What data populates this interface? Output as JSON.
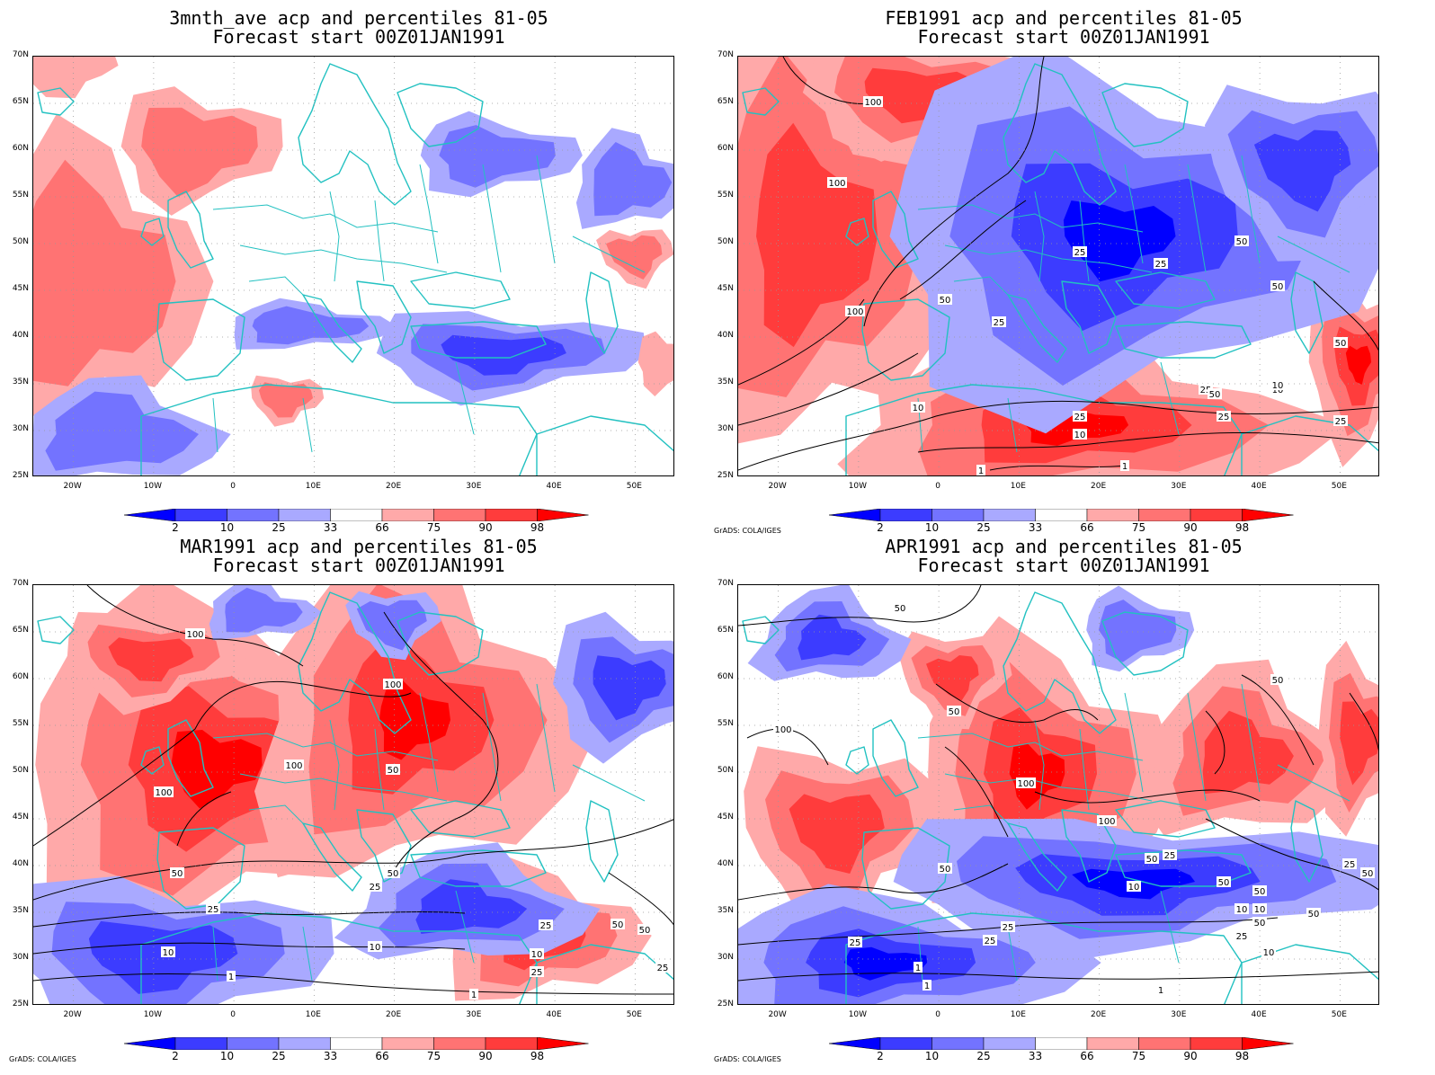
{
  "panels": [
    {
      "id": "p1",
      "title_line1": "3mnth_ave acp and percentiles 81-05",
      "title_line2": "Forecast start 00Z01JAN1991",
      "credit": ""
    },
    {
      "id": "p2",
      "title_line1": "FEB1991 acp and percentiles 81-05",
      "title_line2": "Forecast start 00Z01JAN1991",
      "credit": "GrADS: COLA/IGES"
    },
    {
      "id": "p3",
      "title_line1": "MAR1991 acp and percentiles 81-05",
      "title_line2": "Forecast start 00Z01JAN1991",
      "credit": "GrADS: COLA/IGES"
    },
    {
      "id": "p4",
      "title_line1": "APR1991 acp and percentiles 81-05",
      "title_line2": "Forecast start 00Z01JAN1991",
      "credit": "GrADS: COLA/IGES"
    }
  ],
  "lat_labels": [
    "70N",
    "65N",
    "60N",
    "55N",
    "50N",
    "45N",
    "40N",
    "35N",
    "30N",
    "25N"
  ],
  "lon_labels": [
    "20W",
    "10W",
    "0",
    "10E",
    "20E",
    "30E",
    "40E",
    "50E"
  ],
  "colorbar": {
    "labels": [
      "2",
      "10",
      "25",
      "33",
      "66",
      "75",
      "90",
      "98"
    ],
    "colors": [
      "#0000ff",
      "#3c3cff",
      "#7373ff",
      "#a9a9ff",
      "#ffffff",
      "#ffa9a9",
      "#ff7373",
      "#ff3c3c",
      "#ff0000"
    ]
  },
  "contour_labels": {
    "p2": [
      "100",
      "100",
      "100",
      "50",
      "50",
      "25",
      "25",
      "25",
      "50",
      "50",
      "25",
      "10",
      "10",
      "10",
      "25",
      "25",
      "10",
      "1",
      "1",
      "50",
      "50",
      "25"
    ],
    "p3": [
      "100",
      "100",
      "100",
      "100",
      "50",
      "50",
      "50",
      "25",
      "25",
      "10",
      "10",
      "1",
      "1",
      "25",
      "25",
      "50",
      "50",
      "25",
      "10"
    ],
    "p4": [
      "50",
      "100",
      "50",
      "50",
      "50",
      "100",
      "100",
      "50",
      "50",
      "25",
      "25",
      "25",
      "50",
      "25",
      "10",
      "10",
      "10",
      "1",
      "1",
      "1",
      "25",
      "10",
      "50",
      "50",
      "25",
      "50"
    ]
  },
  "colors": {
    "coastline": "#22c1c1",
    "contour": "#000000",
    "grid": "#999999"
  }
}
